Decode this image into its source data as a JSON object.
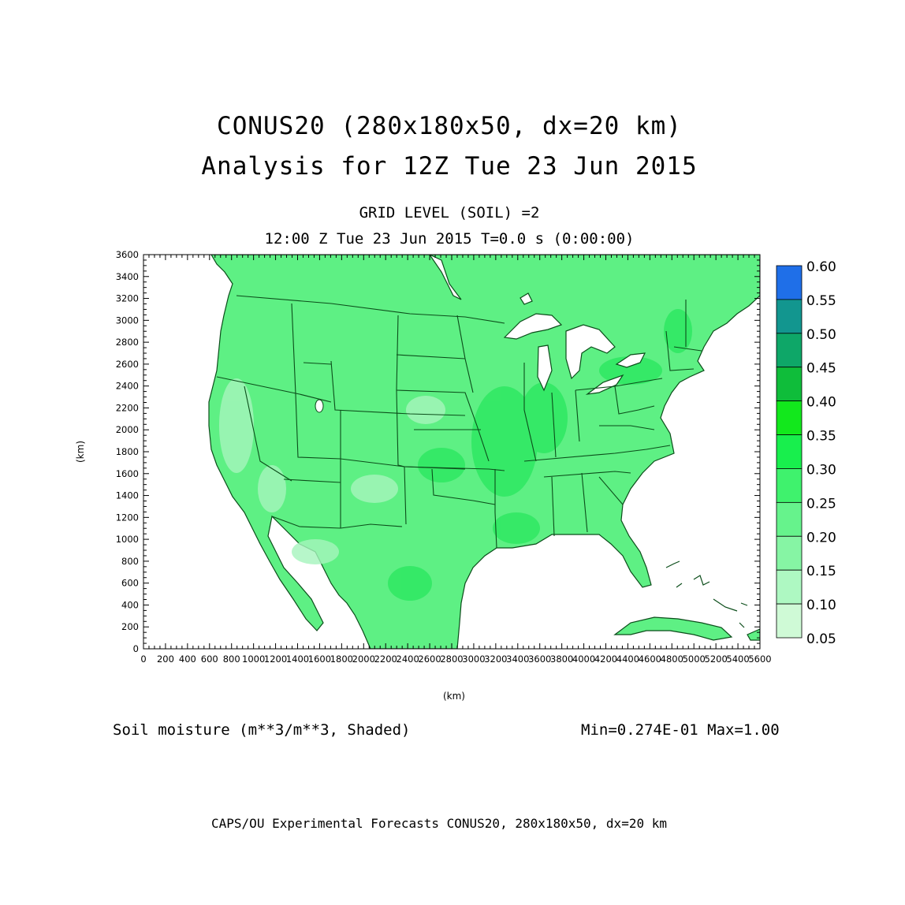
{
  "title": "CONUS20 (280x180x50, dx=20 km)",
  "subtitle": "Analysis for 12Z Tue 23 Jun 2015",
  "grid_level": "GRID LEVEL (SOIL) =2",
  "time_line": "12:00 Z Tue 23 Jun 2015   T=0.0 s (0:00:00)",
  "field_label": "Soil moisture (m**3/m**3, Shaded)",
  "min_max": "Min=0.274E-01 Max=1.00",
  "footer": "CAPS/OU Experimental Forecasts  CONUS20, 280x180x50, dx=20 km",
  "axes": {
    "x_unit": "(km)",
    "y_unit": "(km)",
    "x_range": [
      0,
      5600
    ],
    "y_range": [
      0,
      3600
    ],
    "x_ticks": [
      0,
      200,
      400,
      600,
      800,
      1000,
      1200,
      1400,
      1600,
      1800,
      2000,
      2200,
      2400,
      2600,
      2800,
      3000,
      3200,
      3400,
      3600,
      3800,
      4000,
      4200,
      4400,
      4600,
      4800,
      5000,
      5200,
      5400,
      5600
    ],
    "y_ticks": [
      0,
      200,
      400,
      600,
      800,
      1000,
      1200,
      1400,
      1600,
      1800,
      2000,
      2200,
      2400,
      2600,
      2800,
      3000,
      3200,
      3400,
      3600
    ]
  },
  "colorbar": {
    "labels": [
      "0.60",
      "0.55",
      "0.50",
      "0.45",
      "0.40",
      "0.35",
      "0.30",
      "0.25",
      "0.20",
      "0.15",
      "0.10",
      "0.05"
    ],
    "colors": [
      "#1f6fe8",
      "#12968f",
      "#0ea768",
      "#0fbd3a",
      "#12e81c",
      "#18ef4d",
      "#3ff26d",
      "#66f38c",
      "#86f5a4",
      "#aef8c2",
      "#cffad6"
    ]
  }
}
